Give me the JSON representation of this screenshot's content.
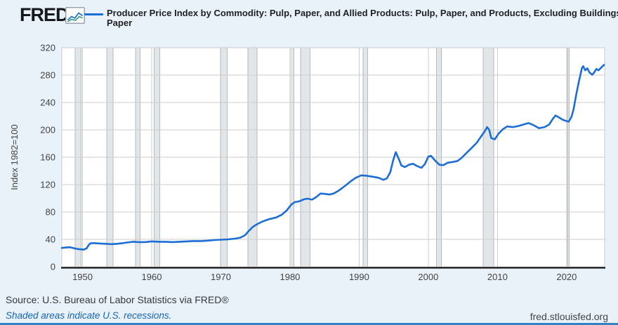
{
  "header": {
    "logo_text": "FRED",
    "registered_symbol": "®",
    "series_title": "Producer Price Index by Commodity: Pulp, Paper, and Allied Products: Pulp, Paper, and Products, Excluding Buildings Paper"
  },
  "chart_data": {
    "type": "line",
    "title": "Producer Price Index by Commodity: Pulp, Paper, and Allied Products: Pulp, Paper, and Products, Excluding Buildings Paper",
    "xlabel": "",
    "ylabel": "Index 1982=100",
    "ylim": [
      0,
      320
    ],
    "yticks": [
      0,
      40,
      80,
      120,
      160,
      200,
      240,
      280,
      320
    ],
    "xlim": [
      1947,
      2025.5
    ],
    "xticks": [
      1950,
      1960,
      1970,
      1980,
      1990,
      2000,
      2010,
      2020
    ],
    "grid": true,
    "legend_position": "top",
    "line_color": "#1b6ed6",
    "colors": {
      "plot_background": "#ffffff",
      "grid": "#cccccc",
      "recession_fill": "#e3e6e8",
      "recession_edge": "#b7babd",
      "axis": "#000000",
      "tick_text": "#444444"
    },
    "recessions": [
      [
        1948.92,
        1949.8
      ],
      [
        1953.5,
        1954.4
      ],
      [
        1957.65,
        1958.3
      ],
      [
        1960.35,
        1961.15
      ],
      [
        1969.95,
        1970.9
      ],
      [
        1973.9,
        1975.25
      ],
      [
        1980.0,
        1980.55
      ],
      [
        1981.55,
        1982.9
      ],
      [
        1990.55,
        1991.25
      ],
      [
        2001.2,
        2001.9
      ],
      [
        2007.95,
        2009.45
      ],
      [
        2020.1,
        2020.35
      ]
    ],
    "series": [
      {
        "name": "Producer Price Index by Commodity: Pulp, Paper, and Allied Products: Pulp, Paper, and Products, Excluding Buildings Paper",
        "points": [
          [
            1947.0,
            27.5
          ],
          [
            1947.5,
            28
          ],
          [
            1948.2,
            28.5
          ],
          [
            1948.8,
            27
          ],
          [
            1949.5,
            25.5
          ],
          [
            1950.2,
            25
          ],
          [
            1950.6,
            27
          ],
          [
            1950.9,
            32
          ],
          [
            1951.2,
            34.5
          ],
          [
            1951.8,
            34.5
          ],
          [
            1952.5,
            34
          ],
          [
            1953.3,
            33.5
          ],
          [
            1954.2,
            33
          ],
          [
            1955.0,
            33.5
          ],
          [
            1955.8,
            34.5
          ],
          [
            1956.5,
            35.5
          ],
          [
            1957.3,
            36.5
          ],
          [
            1958.2,
            36
          ],
          [
            1959.0,
            36
          ],
          [
            1960.0,
            37
          ],
          [
            1961.0,
            36.5
          ],
          [
            1962.0,
            36.5
          ],
          [
            1963.0,
            36
          ],
          [
            1964.0,
            36.5
          ],
          [
            1965.0,
            37
          ],
          [
            1966.0,
            37.5
          ],
          [
            1967.0,
            37.5
          ],
          [
            1968.0,
            38
          ],
          [
            1969.0,
            39
          ],
          [
            1970.0,
            39.5
          ],
          [
            1971.0,
            40
          ],
          [
            1972.0,
            41
          ],
          [
            1972.8,
            42.5
          ],
          [
            1973.5,
            46
          ],
          [
            1974.0,
            52
          ],
          [
            1974.6,
            58
          ],
          [
            1975.2,
            62
          ],
          [
            1976.0,
            66
          ],
          [
            1977.0,
            69.5
          ],
          [
            1978.0,
            72
          ],
          [
            1978.8,
            76
          ],
          [
            1979.5,
            82
          ],
          [
            1980.2,
            91
          ],
          [
            1980.7,
            94.5
          ],
          [
            1981.3,
            95.5
          ],
          [
            1982.0,
            98.5
          ],
          [
            1982.5,
            99.5
          ],
          [
            1983.2,
            98
          ],
          [
            1983.8,
            102
          ],
          [
            1984.4,
            107
          ],
          [
            1985.0,
            106.5
          ],
          [
            1985.7,
            105.5
          ],
          [
            1986.3,
            107
          ],
          [
            1987.0,
            111
          ],
          [
            1988.0,
            118.5
          ],
          [
            1988.8,
            125
          ],
          [
            1989.5,
            130
          ],
          [
            1990.3,
            133.5
          ],
          [
            1991.0,
            133
          ],
          [
            1992.0,
            131.5
          ],
          [
            1992.8,
            130
          ],
          [
            1993.5,
            127
          ],
          [
            1994.0,
            129
          ],
          [
            1994.5,
            138
          ],
          [
            1994.9,
            155
          ],
          [
            1995.3,
            167.5
          ],
          [
            1995.7,
            158
          ],
          [
            1996.1,
            148
          ],
          [
            1996.6,
            145.5
          ],
          [
            1997.2,
            149
          ],
          [
            1997.8,
            150.5
          ],
          [
            1998.4,
            147
          ],
          [
            1999.0,
            144.5
          ],
          [
            1999.5,
            150
          ],
          [
            2000.0,
            161
          ],
          [
            2000.4,
            162
          ],
          [
            2001.0,
            155
          ],
          [
            2001.6,
            149
          ],
          [
            2002.2,
            148.5
          ],
          [
            2002.8,
            152
          ],
          [
            2003.5,
            153
          ],
          [
            2004.2,
            154.5
          ],
          [
            2004.8,
            159
          ],
          [
            2005.5,
            166
          ],
          [
            2006.2,
            173
          ],
          [
            2007.0,
            181
          ],
          [
            2007.6,
            190
          ],
          [
            2008.1,
            197
          ],
          [
            2008.5,
            204
          ],
          [
            2008.8,
            200
          ],
          [
            2009.1,
            188
          ],
          [
            2009.6,
            186
          ],
          [
            2010.2,
            195
          ],
          [
            2010.8,
            201
          ],
          [
            2011.4,
            205
          ],
          [
            2012.2,
            204
          ],
          [
            2013.0,
            205.5
          ],
          [
            2013.8,
            208
          ],
          [
            2014.5,
            210
          ],
          [
            2015.2,
            207
          ],
          [
            2016.0,
            202.5
          ],
          [
            2016.8,
            204
          ],
          [
            2017.5,
            208
          ],
          [
            2018.0,
            216
          ],
          [
            2018.4,
            221
          ],
          [
            2018.9,
            218
          ],
          [
            2019.4,
            215
          ],
          [
            2019.9,
            213
          ],
          [
            2020.3,
            212
          ],
          [
            2020.7,
            219
          ],
          [
            2021.0,
            230
          ],
          [
            2021.4,
            252
          ],
          [
            2021.8,
            272
          ],
          [
            2022.2,
            290
          ],
          [
            2022.4,
            293
          ],
          [
            2022.7,
            287
          ],
          [
            2023.0,
            290
          ],
          [
            2023.3,
            284
          ],
          [
            2023.7,
            280.5
          ],
          [
            2024.0,
            284
          ],
          [
            2024.3,
            289
          ],
          [
            2024.6,
            287
          ],
          [
            2025.0,
            291
          ],
          [
            2025.4,
            295
          ]
        ]
      }
    ]
  },
  "footer": {
    "source": "Source: U.S. Bureau of Labor Statistics via FRED®",
    "recession_note": "Shaded areas indicate U.S. recessions.",
    "site_url": "fred.stlouisfed.org"
  }
}
